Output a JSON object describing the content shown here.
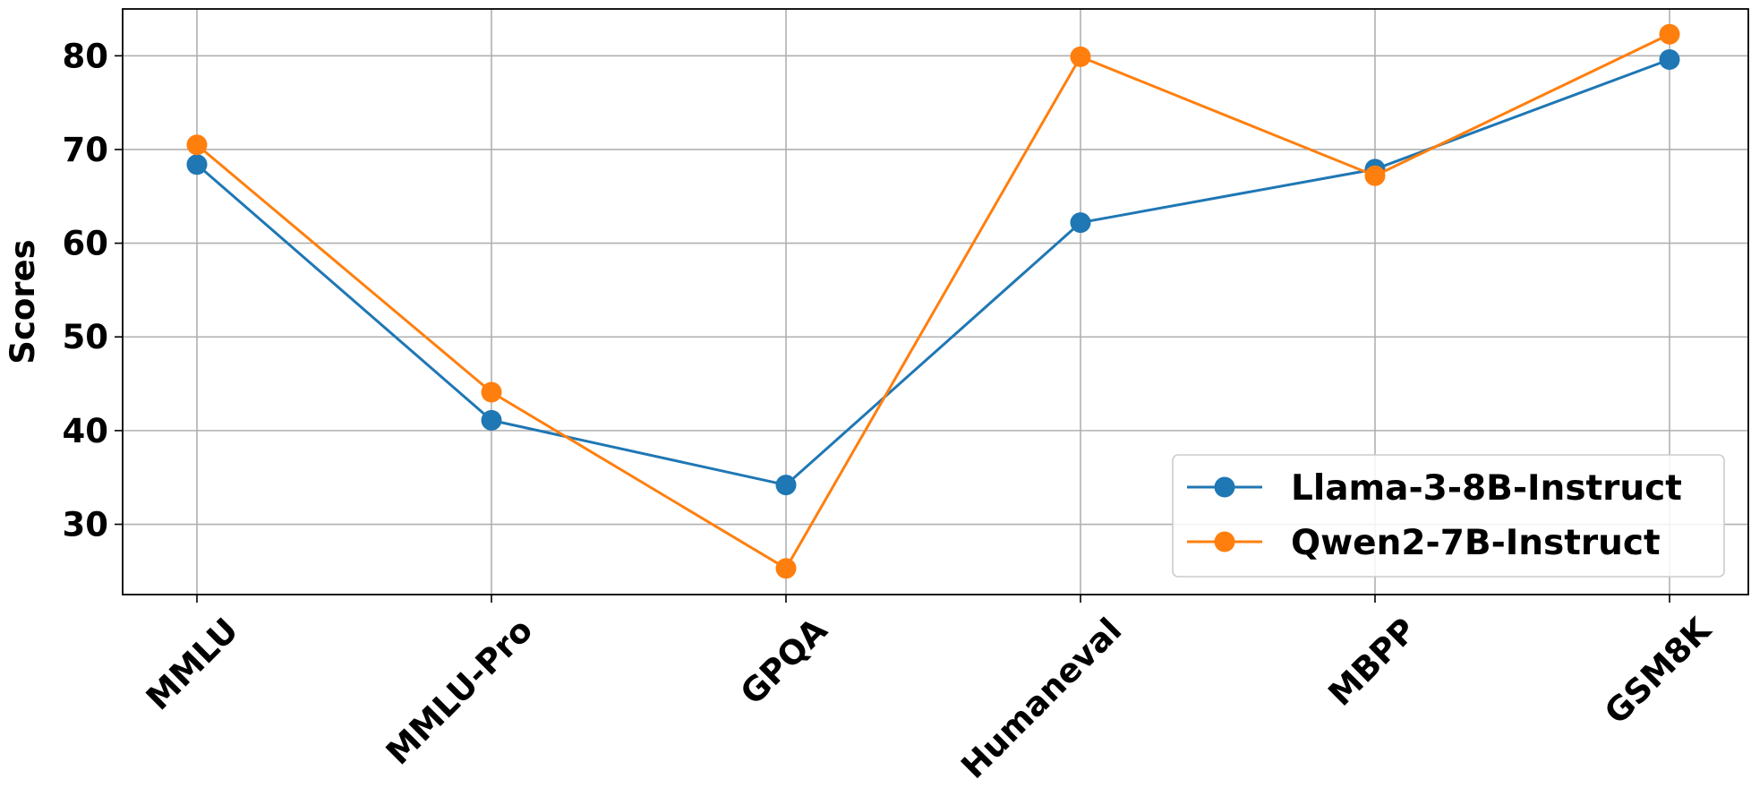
{
  "chart_data": {
    "type": "line",
    "categories": [
      "MMLU",
      "MMLU-Pro",
      "GPQA",
      "Humaneval",
      "MBPP",
      "GSM8K"
    ],
    "series": [
      {
        "name": "Llama-3-8B-Instruct",
        "color": "#1f77b4",
        "values": [
          68.4,
          41.1,
          34.2,
          62.2,
          67.9,
          79.6
        ]
      },
      {
        "name": "Qwen2-7B-Instruct",
        "color": "#ff7f0e",
        "values": [
          70.5,
          44.1,
          25.3,
          79.9,
          67.2,
          82.3
        ]
      }
    ],
    "title": "",
    "xlabel": "",
    "ylabel": "Scores",
    "ylim": [
      22.5,
      85.0
    ],
    "yticks": [
      30,
      40,
      50,
      60,
      70,
      80
    ],
    "grid": true,
    "legend_position": "lower-right"
  }
}
